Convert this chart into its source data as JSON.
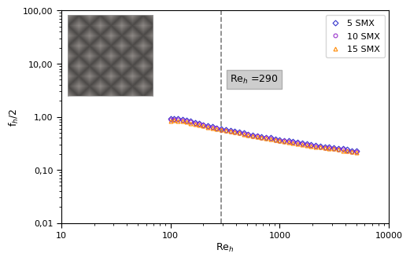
{
  "xlabel": "Re$_h$",
  "ylabel": "f$_h$/2",
  "xlim": [
    10,
    10000
  ],
  "ylim": [
    0.01,
    100
  ],
  "vline_x": 290,
  "series": {
    "5 SMX": {
      "color": "#3333cc",
      "marker": "D",
      "markersize": 3.5,
      "Re": [
        100,
        108,
        117,
        128,
        140,
        153,
        167,
        183,
        200,
        220,
        242,
        265,
        290,
        320,
        352,
        387,
        425,
        467,
        514,
        565,
        621,
        683,
        750,
        825,
        907,
        997,
        1096,
        1206,
        1326,
        1458,
        1604,
        1764,
        1940,
        2134,
        2348,
        2583,
        2841,
        3125,
        3438,
        3781,
        4159,
        4575,
        5000
      ],
      "fh2": [
        0.92,
        0.93,
        0.91,
        0.89,
        0.86,
        0.82,
        0.78,
        0.74,
        0.71,
        0.68,
        0.65,
        0.62,
        0.6,
        0.57,
        0.55,
        0.53,
        0.51,
        0.49,
        0.47,
        0.45,
        0.44,
        0.42,
        0.41,
        0.4,
        0.38,
        0.37,
        0.36,
        0.35,
        0.34,
        0.33,
        0.32,
        0.31,
        0.3,
        0.29,
        0.28,
        0.27,
        0.27,
        0.26,
        0.25,
        0.25,
        0.24,
        0.23,
        0.23
      ]
    },
    "10 SMX": {
      "color": "#9933cc",
      "marker": "o",
      "markersize": 3.5,
      "Re": [
        100,
        108,
        117,
        128,
        140,
        153,
        167,
        183,
        200,
        220,
        242,
        265,
        290,
        320,
        352,
        387,
        425,
        467,
        514,
        565,
        621,
        683,
        750,
        825,
        907,
        997,
        1096,
        1206,
        1326,
        1458,
        1604,
        1764,
        1940,
        2134,
        2348,
        2583,
        2841,
        3125,
        3438,
        3781,
        4159,
        4575,
        5000
      ],
      "fh2": [
        0.88,
        0.9,
        0.88,
        0.86,
        0.83,
        0.79,
        0.76,
        0.72,
        0.69,
        0.66,
        0.63,
        0.61,
        0.58,
        0.56,
        0.54,
        0.52,
        0.5,
        0.48,
        0.46,
        0.44,
        0.43,
        0.41,
        0.4,
        0.39,
        0.37,
        0.36,
        0.35,
        0.34,
        0.33,
        0.32,
        0.31,
        0.3,
        0.29,
        0.28,
        0.27,
        0.26,
        0.26,
        0.25,
        0.24,
        0.24,
        0.23,
        0.22,
        0.22
      ]
    },
    "15 SMX": {
      "color": "#ff8800",
      "marker": "^",
      "markersize": 3.5,
      "Re": [
        100,
        108,
        117,
        128,
        140,
        153,
        167,
        183,
        200,
        220,
        242,
        265,
        290,
        320,
        352,
        387,
        425,
        467,
        514,
        565,
        621,
        683,
        750,
        825,
        907,
        997,
        1096,
        1206,
        1326,
        1458,
        1604,
        1764,
        1940,
        2134,
        2348,
        2583,
        2841,
        3125,
        3438,
        3781,
        4159,
        4575,
        5000
      ],
      "fh2": [
        0.84,
        0.86,
        0.84,
        0.82,
        0.79,
        0.76,
        0.73,
        0.7,
        0.67,
        0.64,
        0.62,
        0.59,
        0.57,
        0.55,
        0.53,
        0.51,
        0.49,
        0.47,
        0.45,
        0.44,
        0.42,
        0.41,
        0.39,
        0.38,
        0.37,
        0.36,
        0.34,
        0.33,
        0.32,
        0.31,
        0.3,
        0.29,
        0.28,
        0.27,
        0.27,
        0.26,
        0.25,
        0.25,
        0.24,
        0.23,
        0.23,
        0.22,
        0.21
      ]
    }
  },
  "background_color": "#ffffff",
  "ytick_labels": [
    "0,01",
    "0,10",
    "1,00",
    "10,00",
    "100,00"
  ],
  "ytick_vals": [
    0.01,
    0.1,
    1.0,
    10.0,
    100.0
  ],
  "xtick_labels": [
    "10",
    "100",
    "1000",
    "10000"
  ],
  "xtick_vals": [
    10,
    100,
    1000,
    10000
  ]
}
